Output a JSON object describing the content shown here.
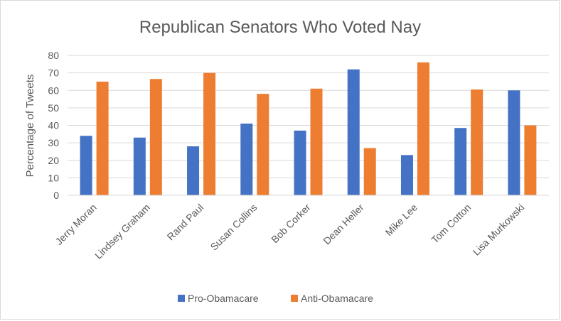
{
  "chart_data": {
    "type": "bar",
    "title": "Republican Senators Who Voted  Nay",
    "xlabel": "",
    "ylabel": "Percentage of Tweets",
    "ylim": [
      0,
      80
    ],
    "yticks": [
      0,
      10,
      20,
      30,
      40,
      50,
      60,
      70,
      80
    ],
    "grid": true,
    "legend_position": "bottom",
    "categories": [
      "Jerry Moran",
      "Lindsey Graham",
      "Rand Paul",
      "Susan Collins",
      "Bob Corker",
      "Dean Heller",
      "Mike Lee",
      "Tom Cotton",
      "Lisa Murkowski"
    ],
    "series": [
      {
        "name": "Pro-Obamacare",
        "color": "#4472c4",
        "values": [
          34,
          33,
          28,
          41,
          37,
          72,
          23,
          38.5,
          60
        ]
      },
      {
        "name": "Anti-Obamacare",
        "color": "#ed7d31",
        "values": [
          65,
          66.5,
          70,
          58,
          61,
          27,
          76,
          60.5,
          40
        ]
      }
    ]
  }
}
